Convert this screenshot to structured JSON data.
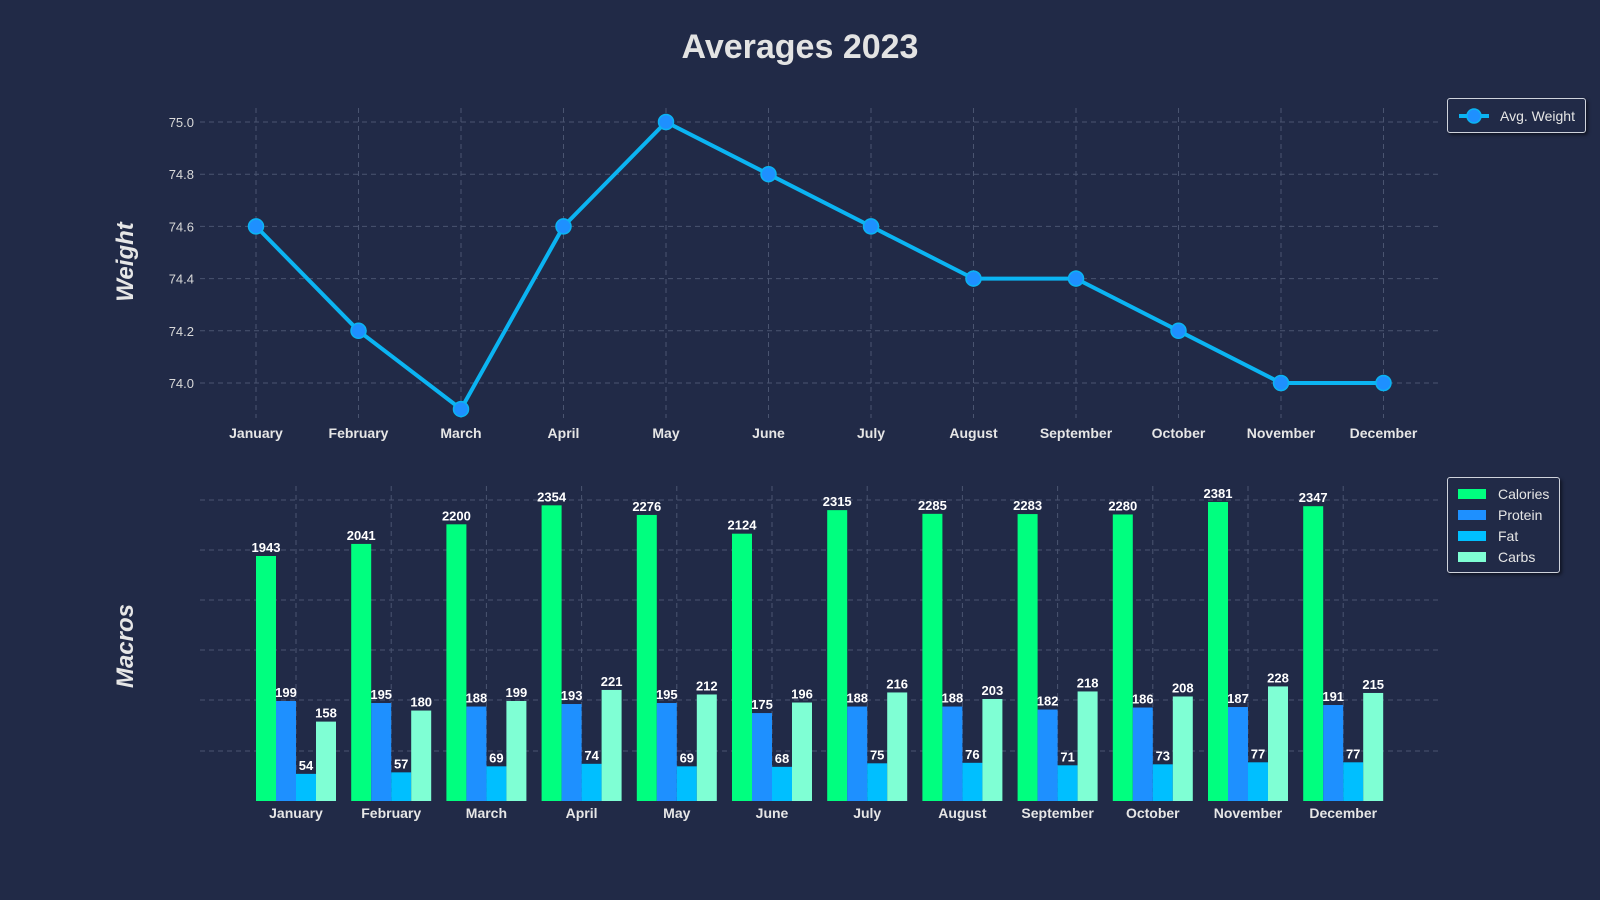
{
  "title": "Averages 2023",
  "chart_data": [
    {
      "type": "line",
      "ylabel": "Weight",
      "categories": [
        "January",
        "February",
        "March",
        "April",
        "May",
        "June",
        "July",
        "August",
        "September",
        "October",
        "November",
        "December"
      ],
      "series": [
        {
          "name": "Avg. Weight",
          "color": "#0bb4f2",
          "marker_color": "#1e90ff",
          "values": [
            74.6,
            74.2,
            73.9,
            74.6,
            75.0,
            74.8,
            74.6,
            74.4,
            74.4,
            74.2,
            74.0,
            74.0
          ]
        }
      ],
      "yticks": [
        74.0,
        74.2,
        74.4,
        74.6,
        74.8,
        75.0
      ],
      "ylim": [
        73.86,
        75.05
      ],
      "grid": true,
      "legend": "top-right"
    },
    {
      "type": "bar",
      "ylabel": "Macros",
      "categories": [
        "January",
        "February",
        "March",
        "April",
        "May",
        "June",
        "July",
        "August",
        "September",
        "October",
        "November",
        "December"
      ],
      "series": [
        {
          "name": "Calories",
          "color": "#00ff7f",
          "values": [
            1943,
            2041,
            2200,
            2354,
            2276,
            2124,
            2315,
            2285,
            2283,
            2280,
            2381,
            2347
          ]
        },
        {
          "name": "Protein",
          "color": "#1e90ff",
          "values": [
            199,
            195,
            188,
            193,
            195,
            175,
            188,
            188,
            182,
            186,
            187,
            191
          ]
        },
        {
          "name": "Fat",
          "color": "#00bfff",
          "values": [
            54,
            57,
            69,
            74,
            69,
            68,
            75,
            76,
            71,
            73,
            77,
            77
          ]
        },
        {
          "name": "Carbs",
          "color": "#7fffd4",
          "values": [
            158,
            180,
            199,
            221,
            212,
            196,
            216,
            203,
            218,
            208,
            228,
            215
          ]
        }
      ],
      "scale_note": "Calories on own scale; protein/fat/carbs on shared secondary scale",
      "grid": true,
      "legend": "top-right"
    }
  ]
}
